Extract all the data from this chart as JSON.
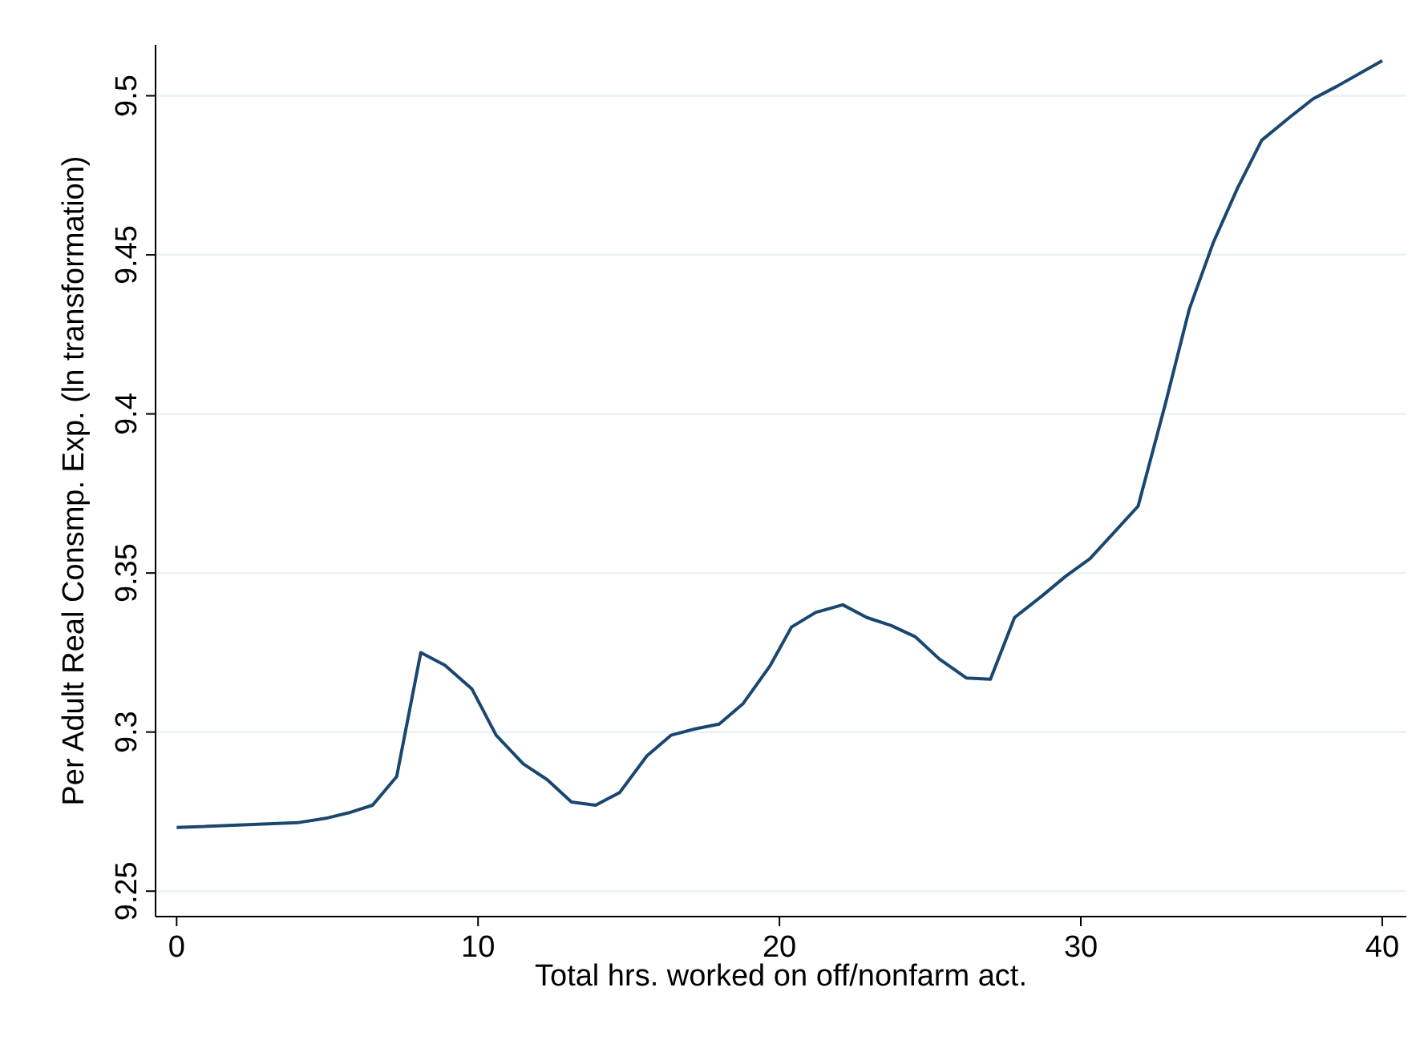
{
  "chart_data": {
    "type": "line",
    "xlabel": "Total hrs. worked on off/nonfarm act.",
    "ylabel": "Per Adult Real Consmp. Exp. (ln transformation)",
    "xlim": [
      -0.7,
      40.8
    ],
    "xticks": [
      0,
      10,
      20,
      30,
      40
    ],
    "ylim": [
      9.242,
      9.516
    ],
    "yticks": [
      9.25,
      9.3,
      9.35,
      9.4,
      9.45,
      9.5
    ],
    "grid": "y",
    "series": [
      {
        "color": "#1a476f",
        "x": [
          0,
          4,
          5,
          5.7,
          6.5,
          7.3,
          8.1,
          8.9,
          9.8,
          10.6,
          11.5,
          12.3,
          13.1,
          13.9,
          14.7,
          15.6,
          16.4,
          17.2,
          18,
          18.8,
          19.7,
          20.4,
          21.2,
          22.1,
          22.9,
          23.7,
          24.5,
          25.3,
          26.2,
          27,
          27.8,
          28.7,
          29.5,
          30.3,
          31.1,
          31.9,
          32.8,
          33.6,
          34.4,
          35.2,
          36,
          36.9,
          37.7,
          38.5,
          40
        ],
        "values": [
          9.27,
          9.2715,
          9.273,
          9.2746,
          9.277,
          9.286,
          9.325,
          9.321,
          9.3135,
          9.299,
          9.29,
          9.285,
          9.278,
          9.277,
          9.281,
          9.2925,
          9.299,
          9.301,
          9.3025,
          9.309,
          9.321,
          9.333,
          9.3376,
          9.34,
          9.336,
          9.3335,
          9.33,
          9.323,
          9.317,
          9.3166,
          9.336,
          9.3427,
          9.349,
          9.3545,
          9.3627,
          9.371,
          9.403,
          9.433,
          9.454,
          9.471,
          9.486,
          9.493,
          9.499,
          9.503,
          9.511
        ]
      }
    ]
  }
}
